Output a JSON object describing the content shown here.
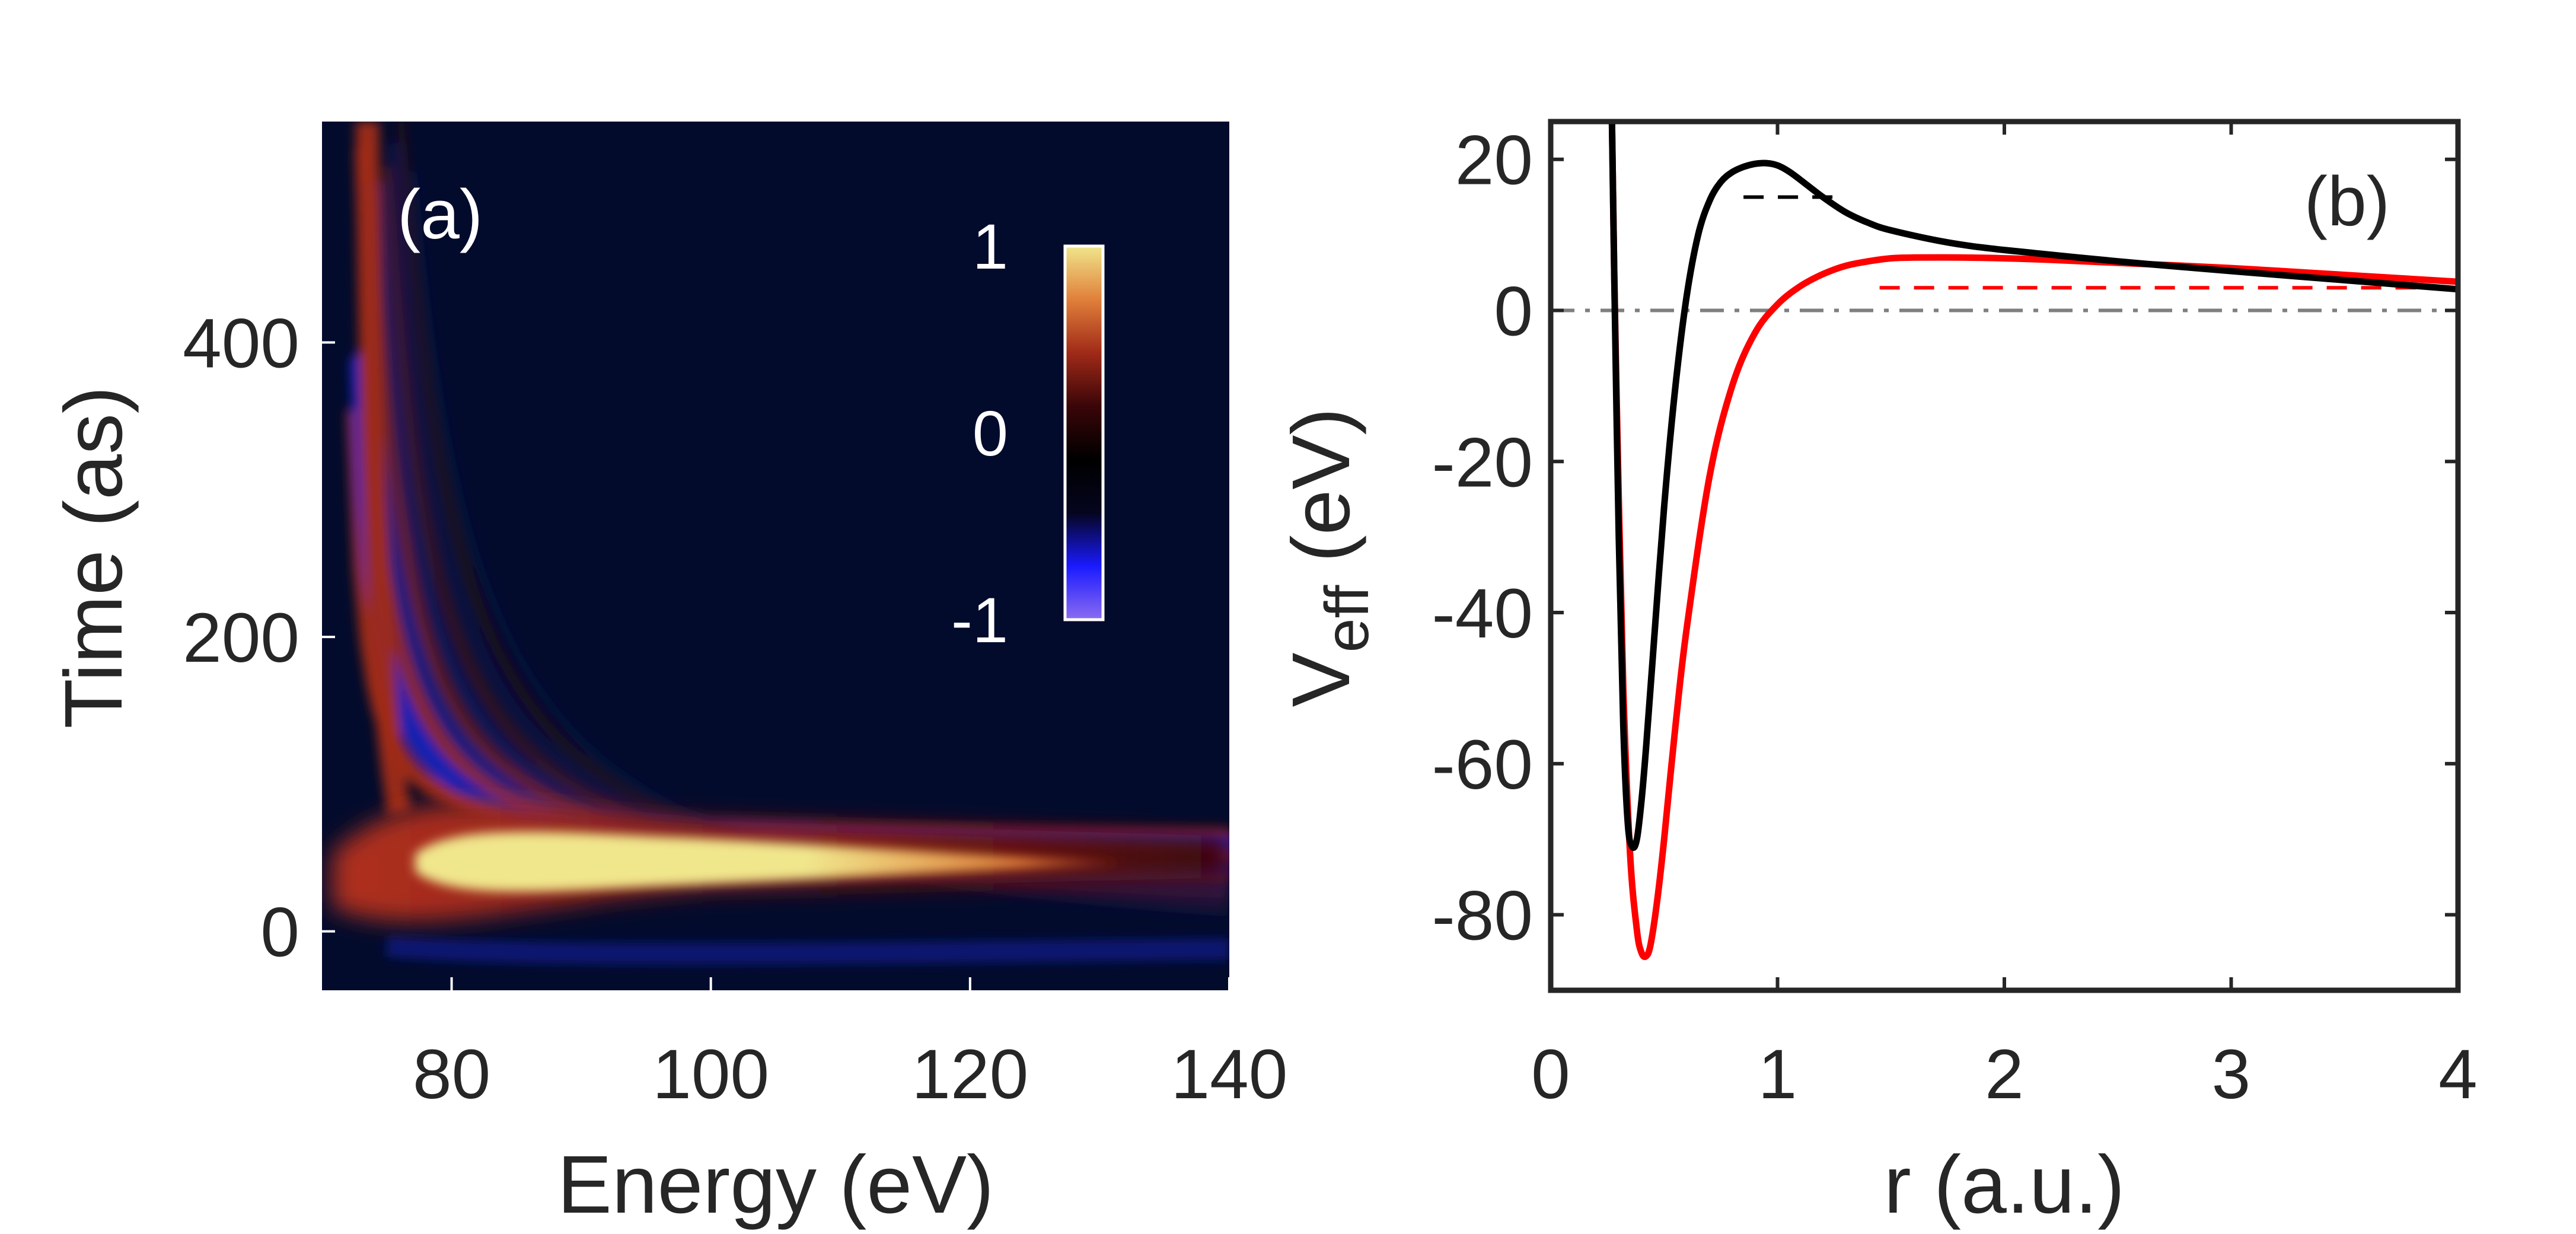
{
  "chart_data": [
    {
      "type": "heatmap",
      "panel_label": "(a)",
      "xlabel": "Energy (eV)",
      "ylabel": "Time (as)",
      "xlim": [
        70,
        140
      ],
      "ylim": [
        -40,
        550
      ],
      "x_ticks": [
        80,
        100,
        120,
        140
      ],
      "y_ticks": [
        0,
        200,
        400
      ],
      "colorbar": {
        "range": [
          -1,
          1
        ],
        "ticks": [
          1,
          0,
          -1
        ],
        "colormap": [
          "#8b6cf0",
          "#1a1aff",
          "#05051f",
          "#000000",
          "#3a0508",
          "#a02a18",
          "#e0803a",
          "#f0e68c"
        ]
      },
      "background_color": "#020b2c",
      "features": [
        {
          "name": "central lobe",
          "peak_time": 20,
          "energy_range": [
            72,
            140
          ],
          "value": 1
        },
        {
          "name": "fringe pattern",
          "description_value_range": [
            -1,
            1
          ]
        }
      ]
    },
    {
      "type": "line",
      "panel_label": "(b)",
      "xlabel": "r (a.u.)",
      "ylabel_main": "V",
      "ylabel_sub": "eff",
      "ylabel_unit": " (eV)",
      "xlim": [
        0,
        4
      ],
      "ylim": [
        -90,
        25
      ],
      "x_ticks": [
        0,
        1,
        2,
        3,
        4
      ],
      "y_ticks": [
        20,
        0,
        -20,
        -40,
        -60,
        -80
      ],
      "series": [
        {
          "color": "#000000",
          "x": [
            0.27,
            0.28,
            0.3,
            0.32,
            0.34,
            0.36,
            0.38,
            0.4,
            0.42,
            0.45,
            0.5,
            0.55,
            0.6,
            0.65,
            0.7,
            0.75,
            0.8,
            0.85,
            0.9,
            0.95,
            1.0,
            1.05,
            1.1,
            1.2,
            1.3,
            1.4,
            1.5,
            1.75,
            2.0,
            2.5,
            3.0,
            3.5,
            4.0
          ],
          "y": [
            25,
            5,
            -30,
            -55,
            -68,
            -71,
            -70,
            -65,
            -58,
            -46,
            -26,
            -10,
            2,
            10,
            14.5,
            17,
            18.3,
            19.0,
            19.4,
            19.5,
            19.2,
            18.4,
            17.3,
            15.0,
            13.0,
            11.6,
            10.6,
            9.0,
            8.0,
            6.5,
            5.2,
            4.0,
            2.8
          ]
        },
        {
          "color": "#ff0000",
          "x": [
            0.27,
            0.28,
            0.3,
            0.32,
            0.35,
            0.38,
            0.4,
            0.42,
            0.44,
            0.47,
            0.5,
            0.55,
            0.6,
            0.7,
            0.8,
            0.9,
            1.0,
            1.1,
            1.2,
            1.3,
            1.4,
            1.5,
            1.6,
            1.8,
            2.0,
            2.2,
            2.5,
            3.0,
            3.5,
            4.0
          ],
          "y": [
            25,
            5,
            -25,
            -50,
            -72,
            -82,
            -85,
            -85.5,
            -84,
            -78,
            -70,
            -55,
            -42,
            -22,
            -10,
            -3,
            0.8,
            3.2,
            4.8,
            5.9,
            6.5,
            6.9,
            7.0,
            7.0,
            6.9,
            6.7,
            6.3,
            5.6,
            4.7,
            3.8
          ]
        }
      ],
      "reference_lines": [
        {
          "style": "dash-dot",
          "color": "#7f7f7f",
          "y": 0,
          "x_range": [
            0,
            4
          ]
        },
        {
          "style": "dashed",
          "color": "#000000",
          "y": 15,
          "x_range": [
            0.85,
            1.27
          ]
        },
        {
          "style": "dashed",
          "color": "#ff0000",
          "y": 3,
          "x_range": [
            1.45,
            4.0
          ]
        }
      ]
    }
  ]
}
